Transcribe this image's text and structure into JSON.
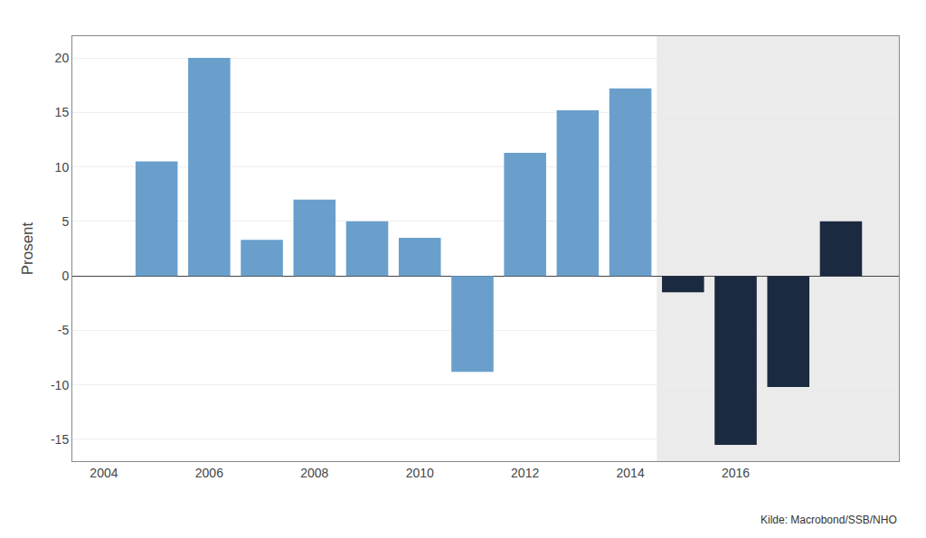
{
  "chart_data": {
    "type": "bar",
    "x": [
      2005,
      2006,
      2007,
      2008,
      2009,
      2010,
      2011,
      2012,
      2013,
      2014,
      2015,
      2016,
      2017,
      2018
    ],
    "values": [
      10.5,
      20.0,
      3.3,
      7.0,
      5.0,
      3.5,
      -8.8,
      11.3,
      15.2,
      17.2,
      -1.5,
      -15.5,
      -10.2,
      5.0
    ],
    "colors": [
      "#6A9FCC",
      "#6A9FCC",
      "#6A9FCC",
      "#6A9FCC",
      "#6A9FCC",
      "#6A9FCC",
      "#6A9FCC",
      "#6A9FCC",
      "#6A9FCC",
      "#6A9FCC",
      "#1B2A40",
      "#1B2A40",
      "#1B2A40",
      "#1B2A40"
    ],
    "ylabel": "Prosent",
    "annotation": "Kilde: Macrobond/SSB/NHO",
    "xlim": [
      2003.4,
      2019.1
    ],
    "xticks": [
      2004,
      2006,
      2008,
      2010,
      2012,
      2014,
      2016
    ],
    "ylim": [
      -17,
      22
    ],
    "yticks": [
      -15,
      -10,
      -5,
      0,
      5,
      10,
      15,
      20
    ],
    "grid": true
  }
}
